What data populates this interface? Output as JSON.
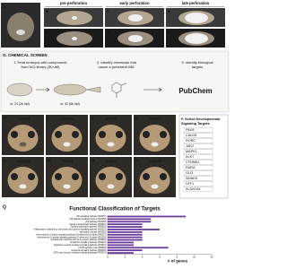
{
  "top": {
    "letter_a": "A",
    "columns": [
      "pre-perforation",
      "early perforation",
      "late perforation"
    ],
    "row1_letters": [
      "B",
      "C",
      "D"
    ],
    "row2_letters": [
      "B'",
      "C'",
      "D'"
    ]
  },
  "screen": {
    "title": "G. CHEMICAL SCREEN",
    "step1": [
      "1.Treat embryos with compounds",
      "from NCI library (30 uM)"
    ],
    "step2": [
      "2. Identify chemicals that",
      "cause a persistent BM."
    ],
    "step3": [
      "3. Identify biological",
      "targets"
    ],
    "stage1": "st. 24 (26 hpf)",
    "stage2": "st. 40 (66 hpf)",
    "pubchem": "PubChem"
  },
  "compounds": {
    "letters": [
      "H",
      "I",
      "J",
      "K",
      "L",
      "M",
      "N",
      "O"
    ],
    "labels": [
      "control",
      "204665",
      "60037",
      "391167",
      "341956",
      "36525",
      "13380",
      "319036"
    ]
  },
  "targets": {
    "title": [
      "P. Select Developmental",
      "Signaling Targets"
    ],
    "genes": [
      "PAX8",
      "CALM1",
      "RORC",
      "JAK2",
      "MAPK1",
      "KLK7",
      "CTNNB1",
      "RARA",
      "GLI3",
      "SMAD3",
      "LEF1",
      "ALDH1A1"
    ]
  },
  "q_chart": {
    "title": "Q",
    "heading": "Functional Classification of Targets",
    "xlabel": "# of genes",
    "color": "#6a3d9a",
    "categories": [
      "Wnt signaling pathway (P00057)",
      "p53 pathway feedback loops 2 (P04398)",
      "p53 pathway (P00059)",
      "Opioid proenkephalin pathway (P05915)",
      "Opioid prodynorphin pathway (P05916)",
      "Inflammation mediated by chemokine and cytokine signaling pathway (P00031)",
      "Huntington disease (P00029)",
      "Heterotrimeric G-protein signaling pathway-Gq alpha and Go alpha (P00027)",
      "Heterotrimeric G-protein signaling pathway-Gi alpha and Gs alpha (P00026)",
      "Gonadotropin-releasing hormone receptor pathway (P06664)",
      "Endothelin signaling pathway (P00019)",
      "Dopamine receptor mediated signaling pathway (P05912)",
      "CCKR signaling map (P06959)",
      "Apoptosis signaling pathway (P00006)",
      "5HT1 type receptor mediated signaling pathway (P04373)"
    ],
    "values": [
      9,
      5,
      5,
      4,
      4,
      6,
      4,
      4,
      4,
      4,
      3,
      3,
      7,
      4,
      3
    ],
    "xlim": [
      0,
      12
    ],
    "xticks": [
      0,
      2,
      4,
      6,
      8,
      10,
      12
    ]
  }
}
